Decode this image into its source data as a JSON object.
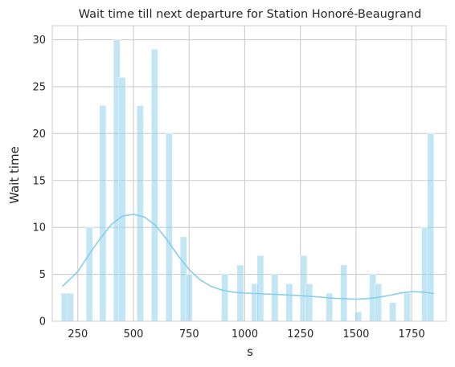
{
  "chart_data": {
    "type": "bar",
    "title": "Wait time till next departure for Station Honoré-Beaugrand",
    "xlabel": "s",
    "ylabel": "Wait time",
    "xlim": [
      135,
      1905
    ],
    "ylim": [
      0,
      31.5
    ],
    "x_ticks": [
      250,
      500,
      750,
      1000,
      1250,
      1500,
      1750
    ],
    "y_ticks": [
      0,
      5,
      10,
      15,
      20,
      25,
      30
    ],
    "grid": true,
    "colors": {
      "bar": "#87ceeb",
      "kde": "#87ceeb",
      "grid": "#cccccc",
      "plot_bg": "#ffffff"
    },
    "bars": [
      {
        "x": 190,
        "value": 3
      },
      {
        "x": 216,
        "value": 3
      },
      {
        "x": 302,
        "value": 10
      },
      {
        "x": 362,
        "value": 23
      },
      {
        "x": 425,
        "value": 30
      },
      {
        "x": 450,
        "value": 26
      },
      {
        "x": 530,
        "value": 23
      },
      {
        "x": 595,
        "value": 29
      },
      {
        "x": 660,
        "value": 20
      },
      {
        "x": 725,
        "value": 9
      },
      {
        "x": 750,
        "value": 5
      },
      {
        "x": 910,
        "value": 5
      },
      {
        "x": 980,
        "value": 6
      },
      {
        "x": 1045,
        "value": 4
      },
      {
        "x": 1070,
        "value": 7
      },
      {
        "x": 1135,
        "value": 5
      },
      {
        "x": 1200,
        "value": 4
      },
      {
        "x": 1265,
        "value": 7
      },
      {
        "x": 1290,
        "value": 4
      },
      {
        "x": 1380,
        "value": 3
      },
      {
        "x": 1445,
        "value": 6
      },
      {
        "x": 1510,
        "value": 1
      },
      {
        "x": 1575,
        "value": 5
      },
      {
        "x": 1600,
        "value": 4
      },
      {
        "x": 1665,
        "value": 2
      },
      {
        "x": 1730,
        "value": 3
      },
      {
        "x": 1810,
        "value": 10
      },
      {
        "x": 1835,
        "value": 20
      }
    ],
    "kde": {
      "x": [
        180,
        250,
        300,
        350,
        400,
        450,
        500,
        550,
        600,
        650,
        700,
        750,
        800,
        850,
        900,
        950,
        1000,
        1100,
        1200,
        1300,
        1400,
        1500,
        1550,
        1600,
        1650,
        1700,
        1750,
        1800,
        1850
      ],
      "y": [
        3.7,
        5.3,
        7.1,
        8.8,
        10.3,
        11.2,
        11.4,
        11.1,
        10.2,
        8.7,
        7.0,
        5.5,
        4.4,
        3.7,
        3.3,
        3.1,
        3.0,
        2.9,
        2.8,
        2.65,
        2.45,
        2.35,
        2.4,
        2.55,
        2.75,
        3.0,
        3.15,
        3.1,
        2.95
      ]
    }
  }
}
